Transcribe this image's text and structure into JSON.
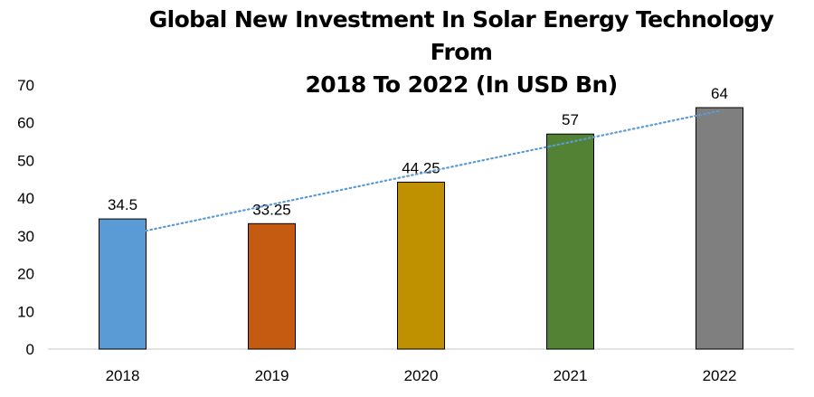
{
  "chart_data": {
    "type": "bar",
    "title": "Global New Investment In Solar Energy Technology From 2018 To 2022 (In USD Bn)",
    "title_lines": [
      "Global New Investment In Solar Energy Technology From",
      "2018 To 2022 (In USD Bn)"
    ],
    "xlabel": "",
    "ylabel": "",
    "categories": [
      "2018",
      "2019",
      "2020",
      "2021",
      "2022"
    ],
    "values": [
      34.5,
      33.25,
      44.25,
      57,
      64
    ],
    "data_labels": [
      "34.5",
      "33.25",
      "44.25",
      "57",
      "64"
    ],
    "bar_colors": [
      "#5B9BD5",
      "#C55A11",
      "#BF9000",
      "#548235",
      "#7F7F7F"
    ],
    "ylim": [
      0,
      70
    ],
    "yticks": [
      0,
      10,
      20,
      30,
      40,
      50,
      60,
      70
    ],
    "grid": false,
    "legend": "none",
    "trendline": {
      "type": "linear",
      "style": "dotted",
      "color": "#5B9BD5"
    }
  }
}
